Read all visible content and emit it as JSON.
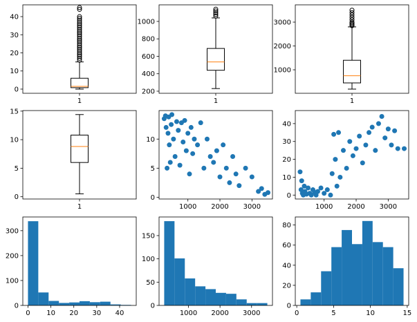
{
  "chart_data": [
    {
      "type": "box",
      "categories": [
        "1"
      ],
      "color": "#000000",
      "median_color": "#ff7f0e",
      "boxes": [
        {
          "whisker_low": 0,
          "q1": 0.8,
          "median": 1.5,
          "q3": 6,
          "whisker_high": 15,
          "outliers": [
            16,
            17,
            18,
            19,
            20,
            21,
            22,
            23,
            24,
            25,
            26,
            27,
            28,
            29,
            30,
            31,
            32,
            33,
            34,
            35,
            36,
            37,
            38,
            39,
            40,
            44,
            45
          ]
        }
      ],
      "ylim": [
        -2.3,
        46.5
      ],
      "yticks": [
        0,
        10,
        20,
        30,
        40
      ]
    },
    {
      "type": "box",
      "categories": [
        "1"
      ],
      "color": "#000000",
      "median_color": "#ff7f0e",
      "boxes": [
        {
          "whisker_low": 230,
          "q1": 440,
          "median": 535,
          "q3": 690,
          "whisker_high": 1040,
          "outliers": [
            1060,
            1080,
            1100,
            1120,
            1140
          ]
        }
      ],
      "ylim": [
        176,
        1190
      ],
      "yticks": [
        200,
        400,
        600,
        800,
        1000
      ]
    },
    {
      "type": "box",
      "categories": [
        "1"
      ],
      "color": "#000000",
      "median_color": "#ff7f0e",
      "boxes": [
        {
          "whisker_low": 190,
          "q1": 450,
          "median": 750,
          "q3": 1400,
          "whisker_high": 2800,
          "outliers": [
            2850,
            2900,
            2950,
            3000,
            3100,
            3200,
            3300,
            3400,
            3500
          ]
        }
      ],
      "ylim": [
        15,
        3725
      ],
      "yticks": [
        1000,
        2000,
        3000
      ]
    },
    {
      "type": "box",
      "categories": [
        "1"
      ],
      "color": "#000000",
      "median_color": "#ff7f0e",
      "boxes": [
        {
          "whisker_low": 0.5,
          "q1": 6,
          "median": 8.8,
          "q3": 10.8,
          "whisker_high": 14.4,
          "outliers": []
        }
      ],
      "ylim": [
        -0.4,
        15.1
      ],
      "yticks": [
        0,
        5,
        10,
        15
      ]
    },
    {
      "type": "scatter",
      "color": "#1f77b4",
      "x": [
        260,
        300,
        320,
        350,
        380,
        400,
        420,
        450,
        480,
        500,
        550,
        600,
        650,
        700,
        750,
        800,
        850,
        900,
        950,
        1000,
        1050,
        1100,
        1150,
        1200,
        1300,
        1400,
        1500,
        1600,
        1700,
        1800,
        1900,
        2000,
        2100,
        2200,
        2300,
        2400,
        2500,
        2600,
        2800,
        3000,
        3200,
        3300,
        3400,
        3500
      ],
      "values": [
        13.5,
        14,
        12,
        5,
        11,
        13.8,
        9,
        6,
        12.5,
        14.2,
        10,
        7,
        13,
        11.5,
        5.5,
        12.8,
        9.5,
        13.2,
        8,
        11,
        4,
        12,
        7.5,
        10,
        9,
        12.8,
        5,
        10,
        7,
        6,
        8,
        3.5,
        9,
        5,
        2.5,
        7,
        4,
        2,
        5,
        3.5,
        1,
        1.5,
        0.5,
        0.8
      ],
      "xlim": [
        100,
        3640
      ],
      "xticks": [
        1000,
        2000,
        3000
      ],
      "ylim": [
        -0.3,
        14.9
      ],
      "yticks": [
        0,
        5,
        10
      ]
    },
    {
      "type": "scatter",
      "color": "#1f77b4",
      "x": [
        250,
        280,
        300,
        320,
        350,
        380,
        400,
        450,
        500,
        550,
        600,
        650,
        700,
        750,
        800,
        900,
        1000,
        1100,
        1200,
        1250,
        1300,
        1350,
        1400,
        1450,
        1500,
        1600,
        1700,
        1800,
        1900,
        2000,
        2100,
        2200,
        2300,
        2400,
        2500,
        2600,
        2700,
        2800,
        2900,
        3000,
        3100,
        3200,
        3300,
        3500
      ],
      "values": [
        13,
        3,
        8,
        1,
        0,
        5,
        2,
        0.5,
        4,
        1,
        0,
        3,
        1.5,
        0,
        2,
        4,
        1,
        3,
        0,
        12,
        34,
        20,
        5,
        35,
        10,
        25,
        15,
        30,
        22,
        26,
        33,
        18,
        28,
        35,
        38,
        25,
        40,
        44,
        32,
        37,
        28,
        36,
        26,
        26
      ],
      "xlim": [
        100,
        3640
      ],
      "xticks": [
        1000,
        2000,
        3000
      ],
      "ylim": [
        -2.2,
        47.3
      ],
      "yticks": [
        0,
        10,
        20,
        30,
        40
      ]
    },
    {
      "type": "histogram",
      "color": "#1f77b4",
      "bins": [
        0,
        4.5,
        9,
        13.5,
        18,
        22.5,
        27,
        31.5,
        36,
        40.5,
        45
      ],
      "values": [
        338,
        52,
        18,
        10,
        12,
        17,
        13,
        15,
        4,
        2
      ],
      "xlim": [
        -2.25,
        47.25
      ],
      "xticks": [
        0,
        10,
        20,
        30,
        40
      ],
      "ylim": [
        0,
        355
      ],
      "yticks": [
        0,
        100,
        200,
        300
      ]
    },
    {
      "type": "histogram",
      "color": "#1f77b4",
      "bins": [
        230,
        557,
        884,
        1211,
        1538,
        1865,
        2192,
        2519,
        2846,
        3173,
        3500
      ],
      "values": [
        181,
        101,
        58,
        41,
        35,
        27,
        25,
        13,
        5,
        5
      ],
      "xlim": [
        67,
        3663
      ],
      "xticks": [
        1000,
        2000,
        3000
      ],
      "ylim": [
        0,
        190
      ],
      "yticks": [
        0,
        50,
        100,
        150
      ]
    },
    {
      "type": "histogram",
      "color": "#1f77b4",
      "bins": [
        0.5,
        1.9,
        3.3,
        4.7,
        6.1,
        7.5,
        8.9,
        10.3,
        11.7,
        13.1,
        14.5
      ],
      "values": [
        6,
        13,
        34,
        58,
        75,
        61,
        84,
        63,
        58,
        37
      ],
      "xlim": [
        -0.2,
        15.2
      ],
      "xticks": [
        0,
        5,
        10,
        15
      ],
      "ylim": [
        0,
        88
      ],
      "yticks": [
        0,
        20,
        40,
        60,
        80
      ]
    }
  ]
}
